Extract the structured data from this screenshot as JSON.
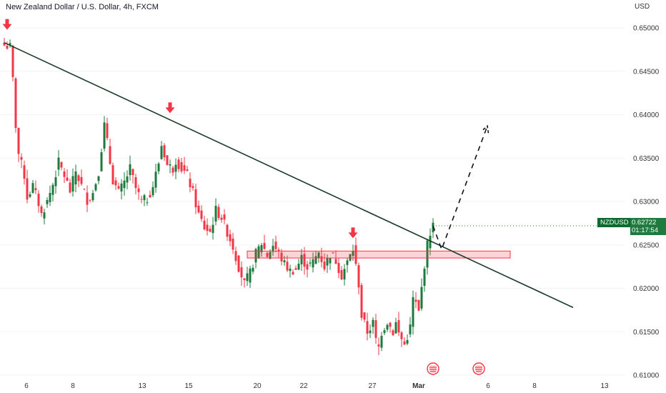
{
  "header": {
    "title": "New Zealand Dollar / U.S. Dollar, 4h, FXCM"
  },
  "price_axis": {
    "currency": "USD"
  },
  "ticker": {
    "symbol": "NZDUSD",
    "price": "0.62722",
    "countdown": "01:17:54"
  },
  "chart_data": {
    "type": "candlestick",
    "title": "New Zealand Dollar / U.S. Dollar, 4h, FXCM",
    "ylabel": "USD",
    "y_ticks": [
      "0.65000",
      "0.64500",
      "0.64000",
      "0.63500",
      "0.63000",
      "0.62500",
      "0.62000",
      "0.61500",
      "0.61000"
    ],
    "x_ticks": [
      "6",
      "8",
      "13",
      "15",
      "20",
      "22",
      "27",
      "Mar",
      "6",
      "8",
      "13"
    ],
    "ylim": [
      0.6096,
      0.6514
    ],
    "last_price": 0.62722,
    "up_color": "#1e7a3c",
    "down_color": "#f23645",
    "trendline": {
      "start": [
        0,
        0.6483
      ],
      "end": [
        199,
        0.6178
      ],
      "color": "#1b3b2a"
    },
    "resistance_zone": {
      "start": 85,
      "end": 177,
      "top": 0.6243,
      "bottom": 0.6235,
      "color": "#f23645"
    },
    "projection_path": [
      [
        150,
        0.6272
      ],
      [
        153,
        0.6245
      ],
      [
        169,
        0.6387
      ]
    ],
    "markers": [
      {
        "type": "arrow-down",
        "index": 1,
        "price": 0.6497
      },
      {
        "type": "arrow-down",
        "index": 58,
        "price": 0.6401
      },
      {
        "type": "arrow-down",
        "index": 122,
        "price": 0.6257
      }
    ],
    "events": [
      {
        "type": "flag-us",
        "index": 150
      },
      {
        "type": "flag-us",
        "index": 166
      }
    ],
    "close_points": [
      [
        0,
        0.648
      ],
      [
        2,
        0.6478
      ],
      [
        3,
        0.644
      ],
      [
        4,
        0.6388
      ],
      [
        5,
        0.6355
      ],
      [
        7,
        0.633
      ],
      [
        8,
        0.6305
      ],
      [
        10,
        0.6318
      ],
      [
        12,
        0.6298
      ],
      [
        13,
        0.6285
      ],
      [
        15,
        0.63
      ],
      [
        17,
        0.632
      ],
      [
        19,
        0.6345
      ],
      [
        21,
        0.633
      ],
      [
        23,
        0.6312
      ],
      [
        25,
        0.6335
      ],
      [
        27,
        0.6318
      ],
      [
        29,
        0.6302
      ],
      [
        31,
        0.631
      ],
      [
        33,
        0.6335
      ],
      [
        35,
        0.6388
      ],
      [
        36,
        0.6368
      ],
      [
        37,
        0.6345
      ],
      [
        38,
        0.6325
      ],
      [
        40,
        0.631
      ],
      [
        42,
        0.6322
      ],
      [
        44,
        0.6338
      ],
      [
        46,
        0.6315
      ],
      [
        48,
        0.63
      ],
      [
        50,
        0.6303
      ],
      [
        52,
        0.6318
      ],
      [
        54,
        0.6345
      ],
      [
        55,
        0.6365
      ],
      [
        56,
        0.6355
      ],
      [
        57,
        0.6342
      ],
      [
        59,
        0.6338
      ],
      [
        60,
        0.6348
      ],
      [
        62,
        0.6338
      ],
      [
        64,
        0.633
      ],
      [
        66,
        0.631
      ],
      [
        68,
        0.6285
      ],
      [
        70,
        0.627
      ],
      [
        72,
        0.6265
      ],
      [
        74,
        0.629
      ],
      [
        76,
        0.6282
      ],
      [
        78,
        0.6265
      ],
      [
        80,
        0.6248
      ],
      [
        82,
        0.6225
      ],
      [
        84,
        0.6205
      ],
      [
        86,
        0.6218
      ],
      [
        88,
        0.624
      ],
      [
        90,
        0.6252
      ],
      [
        92,
        0.6238
      ],
      [
        94,
        0.625
      ],
      [
        96,
        0.624
      ],
      [
        98,
        0.6228
      ],
      [
        100,
        0.622
      ],
      [
        102,
        0.6222
      ],
      [
        104,
        0.6235
      ],
      [
        106,
        0.6225
      ],
      [
        108,
        0.623
      ],
      [
        110,
        0.6242
      ],
      [
        112,
        0.6225
      ],
      [
        114,
        0.624
      ],
      [
        116,
        0.6232
      ],
      [
        118,
        0.6215
      ],
      [
        120,
        0.623
      ],
      [
        122,
        0.6245
      ],
      [
        124,
        0.6205
      ],
      [
        125,
        0.6168
      ],
      [
        127,
        0.615
      ],
      [
        129,
        0.616
      ],
      [
        130,
        0.614
      ],
      [
        131,
        0.6132
      ],
      [
        132,
        0.615
      ],
      [
        134,
        0.6162
      ],
      [
        136,
        0.615
      ],
      [
        137,
        0.616
      ],
      [
        138,
        0.6148
      ],
      [
        140,
        0.6135
      ],
      [
        142,
        0.6155
      ],
      [
        143,
        0.6188
      ],
      [
        144,
        0.6182
      ],
      [
        145,
        0.6172
      ],
      [
        146,
        0.62
      ],
      [
        147,
        0.6228
      ],
      [
        148,
        0.625
      ],
      [
        149,
        0.6265
      ],
      [
        150,
        0.6272
      ]
    ]
  }
}
